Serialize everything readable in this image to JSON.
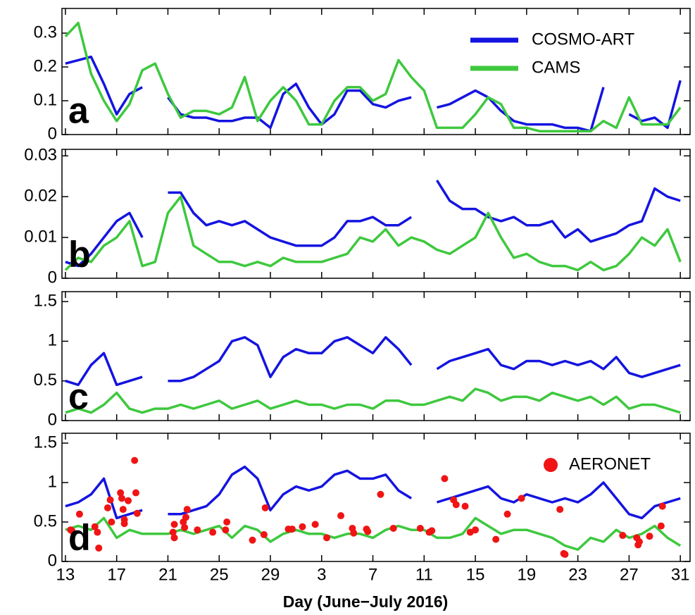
{
  "chart_data": [
    {
      "type": "line",
      "label": "a",
      "legend": "upper right",
      "x": [
        0,
        1,
        2,
        3,
        4,
        5,
        6,
        7,
        8,
        9,
        10,
        11,
        12,
        13,
        14,
        15,
        16,
        17,
        18,
        19,
        20,
        21,
        22,
        23,
        24,
        25,
        26,
        27,
        28,
        29,
        30,
        31,
        32,
        33,
        34,
        35,
        36,
        37,
        38,
        39,
        40,
        41,
        42,
        43,
        44,
        45,
        46,
        47,
        48
      ],
      "xlim": [
        -0.27,
        48.76
      ],
      "ylim": [
        0,
        0.373
      ],
      "yticks": [
        0,
        0.1,
        0.2,
        0.3
      ],
      "series": [
        {
          "name": "COSMO-ART",
          "color": "#1414e0",
          "values": [
            0.21,
            0.22,
            0.23,
            0.15,
            0.06,
            0.12,
            0.14,
            null,
            0.11,
            0.06,
            0.05,
            0.05,
            0.04,
            0.04,
            0.05,
            0.05,
            0.02,
            0.12,
            0.15,
            0.08,
            0.03,
            0.06,
            0.13,
            0.13,
            0.09,
            0.08,
            0.1,
            0.11,
            null,
            0.08,
            0.09,
            0.11,
            0.13,
            0.11,
            0.07,
            0.04,
            0.03,
            0.03,
            0.03,
            0.02,
            0.02,
            0.01,
            0.14,
            null,
            0.06,
            0.04,
            0.05,
            0.02,
            0.16
          ]
        },
        {
          "name": "CAMS",
          "color": "#3ec83e",
          "values": [
            0.29,
            0.33,
            0.18,
            0.1,
            0.04,
            0.09,
            0.19,
            0.21,
            0.12,
            0.05,
            0.07,
            0.07,
            0.06,
            0.08,
            0.17,
            0.04,
            0.1,
            0.14,
            0.1,
            0.03,
            0.03,
            0.1,
            0.14,
            0.14,
            0.1,
            0.12,
            0.22,
            0.17,
            0.13,
            0.02,
            0.02,
            0.02,
            0.06,
            0.11,
            0.09,
            0.02,
            0.02,
            0.01,
            0.01,
            0.01,
            0.01,
            0.01,
            0.04,
            0.02,
            0.11,
            0.03,
            0.03,
            0.03,
            0.08
          ]
        }
      ]
    },
    {
      "type": "line",
      "label": "b",
      "x": [
        0,
        1,
        2,
        3,
        4,
        5,
        6,
        7,
        8,
        9,
        10,
        11,
        12,
        13,
        14,
        15,
        16,
        17,
        18,
        19,
        20,
        21,
        22,
        23,
        24,
        25,
        26,
        27,
        28,
        29,
        30,
        31,
        32,
        33,
        34,
        35,
        36,
        37,
        38,
        39,
        40,
        41,
        42,
        43,
        44,
        45,
        46,
        47,
        48
      ],
      "xlim": [
        -0.27,
        48.76
      ],
      "ylim": [
        0,
        0.0316
      ],
      "yticks": [
        0,
        0.01,
        0.02,
        0.03
      ],
      "series": [
        {
          "color": "#1414e0",
          "values": [
            0.004,
            0.003,
            0.006,
            0.01,
            0.014,
            0.016,
            0.01,
            null,
            0.021,
            0.021,
            0.016,
            0.013,
            0.014,
            0.013,
            0.014,
            0.012,
            0.01,
            0.009,
            0.008,
            0.008,
            0.008,
            0.01,
            0.014,
            0.014,
            0.015,
            0.013,
            0.013,
            0.015,
            null,
            0.024,
            0.019,
            0.017,
            0.017,
            0.015,
            0.014,
            0.015,
            0.013,
            0.013,
            0.014,
            0.01,
            0.012,
            0.009,
            0.01,
            0.011,
            0.013,
            0.014,
            0.022,
            0.02,
            0.019
          ]
        },
        {
          "color": "#3ec83e",
          "values": [
            0.002,
            0.005,
            0.004,
            0.008,
            0.01,
            0.014,
            0.003,
            0.004,
            0.016,
            0.02,
            0.008,
            0.006,
            0.004,
            0.004,
            0.003,
            0.004,
            0.003,
            0.005,
            0.004,
            0.004,
            0.004,
            0.005,
            0.006,
            0.01,
            0.009,
            0.012,
            0.008,
            0.01,
            0.009,
            0.007,
            0.006,
            0.008,
            0.01,
            0.016,
            0.01,
            0.005,
            0.006,
            0.004,
            0.003,
            0.003,
            0.002,
            0.004,
            0.002,
            0.003,
            0.006,
            0.01,
            0.008,
            0.012,
            0.004
          ]
        }
      ]
    },
    {
      "type": "line",
      "label": "c",
      "x": [
        0,
        1,
        2,
        3,
        4,
        5,
        6,
        7,
        8,
        9,
        10,
        11,
        12,
        13,
        14,
        15,
        16,
        17,
        18,
        19,
        20,
        21,
        22,
        23,
        24,
        25,
        26,
        27,
        28,
        29,
        30,
        31,
        32,
        33,
        34,
        35,
        36,
        37,
        38,
        39,
        40,
        41,
        42,
        43,
        44,
        45,
        46,
        47,
        48
      ],
      "xlim": [
        -0.27,
        48.76
      ],
      "ylim": [
        0,
        1.625
      ],
      "yticks": [
        0,
        0.5,
        1,
        1.5
      ],
      "series": [
        {
          "color": "#1414e0",
          "values": [
            0.5,
            0.45,
            0.7,
            0.85,
            0.45,
            0.5,
            0.55,
            null,
            0.5,
            0.5,
            0.55,
            0.65,
            0.75,
            1.0,
            1.05,
            0.95,
            0.55,
            0.8,
            0.9,
            0.85,
            0.85,
            1.0,
            1.05,
            0.95,
            0.85,
            1.05,
            0.9,
            0.7,
            null,
            0.65,
            0.75,
            0.8,
            0.85,
            0.9,
            0.7,
            0.65,
            0.75,
            0.75,
            0.7,
            0.75,
            0.7,
            0.75,
            0.65,
            0.8,
            0.6,
            0.55,
            0.6,
            0.65,
            0.7
          ]
        },
        {
          "color": "#3ec83e",
          "values": [
            0.1,
            0.15,
            0.1,
            0.2,
            0.35,
            0.15,
            0.1,
            0.15,
            0.15,
            0.2,
            0.15,
            0.2,
            0.25,
            0.15,
            0.2,
            0.25,
            0.15,
            0.2,
            0.25,
            0.2,
            0.2,
            0.15,
            0.2,
            0.2,
            0.15,
            0.25,
            0.25,
            0.2,
            0.2,
            0.25,
            0.3,
            0.25,
            0.4,
            0.35,
            0.25,
            0.3,
            0.3,
            0.25,
            0.35,
            0.3,
            0.25,
            0.3,
            0.2,
            0.3,
            0.15,
            0.2,
            0.2,
            0.15,
            0.1
          ]
        }
      ]
    },
    {
      "type": "line",
      "label": "d",
      "legend": "upper right",
      "xlabel": "Day (June−July 2016)",
      "x": [
        0,
        1,
        2,
        3,
        4,
        5,
        6,
        7,
        8,
        9,
        10,
        11,
        12,
        13,
        14,
        15,
        16,
        17,
        18,
        19,
        20,
        21,
        22,
        23,
        24,
        25,
        26,
        27,
        28,
        29,
        30,
        31,
        32,
        33,
        34,
        35,
        36,
        37,
        38,
        39,
        40,
        41,
        42,
        43,
        44,
        45,
        46,
        47,
        48
      ],
      "xlim": [
        -0.27,
        48.76
      ],
      "ylim": [
        0,
        1.625
      ],
      "yticks": [
        0,
        0.5,
        1,
        1.5
      ],
      "xticks": [
        {
          "value": 0,
          "label": "13"
        },
        {
          "value": 4,
          "label": "17"
        },
        {
          "value": 8,
          "label": "21"
        },
        {
          "value": 12,
          "label": "25"
        },
        {
          "value": 16,
          "label": "29"
        },
        {
          "value": 20,
          "label": "3"
        },
        {
          "value": 24,
          "label": "7"
        },
        {
          "value": 28,
          "label": "11"
        },
        {
          "value": 32,
          "label": "15"
        },
        {
          "value": 36,
          "label": "19"
        },
        {
          "value": 40,
          "label": "23"
        },
        {
          "value": 44,
          "label": "27"
        },
        {
          "value": 48,
          "label": "31"
        }
      ],
      "series": [
        {
          "color": "#1414e0",
          "values": [
            0.7,
            0.75,
            0.85,
            1.05,
            0.55,
            0.6,
            0.65,
            null,
            0.6,
            0.6,
            0.65,
            0.7,
            0.85,
            1.1,
            1.2,
            1.05,
            0.65,
            0.85,
            0.95,
            0.9,
            0.95,
            1.1,
            1.15,
            1.05,
            1.05,
            1.1,
            0.9,
            0.8,
            null,
            0.75,
            0.8,
            0.85,
            0.9,
            0.95,
            0.8,
            0.75,
            0.85,
            0.8,
            0.75,
            0.8,
            0.75,
            0.85,
            1.0,
            0.8,
            0.6,
            0.55,
            0.7,
            0.75,
            0.8
          ]
        },
        {
          "color": "#3ec83e",
          "values": [
            0.4,
            0.45,
            0.4,
            0.55,
            0.3,
            0.4,
            0.35,
            0.35,
            0.35,
            0.4,
            0.35,
            0.4,
            0.45,
            0.3,
            0.45,
            0.4,
            0.25,
            0.35,
            0.4,
            0.35,
            0.35,
            0.3,
            0.35,
            0.35,
            0.3,
            0.4,
            0.45,
            0.4,
            0.4,
            0.3,
            0.3,
            0.35,
            0.55,
            0.45,
            0.35,
            0.4,
            0.4,
            0.35,
            0.3,
            0.2,
            0.15,
            0.3,
            0.25,
            0.4,
            0.3,
            0.35,
            0.45,
            0.3,
            0.2
          ]
        },
        {
          "name": "AERONET",
          "type": "scatter",
          "color": "#f01414",
          "x": [
            0.4,
            0.5,
            1.1,
            2.3,
            2.5,
            2.6,
            3.3,
            3.5,
            3.6,
            4.3,
            4.4,
            4.5,
            4.6,
            4.6,
            4.9,
            5.4,
            5.5,
            5.6,
            8.4,
            8.5,
            8.5,
            9.2,
            9.3,
            9.5,
            9.4,
            10.3,
            11.5,
            12.5,
            12.6,
            14.6,
            15.5,
            15.6,
            17.4,
            17.7,
            18.5,
            19.5,
            20.4,
            21.5,
            22.4,
            22.5,
            23.5,
            23.6,
            24.6,
            25.6,
            27.7,
            28.4,
            28.6,
            29.6,
            30.3,
            30.5,
            31.2,
            31.6,
            32.0,
            33.6,
            34.5,
            35.6,
            38.6,
            38.9,
            39.0,
            43.5,
            44.6,
            44.8,
            44.7,
            45.6,
            46.5,
            46.6
          ],
          "values": [
            0.4,
            0.39,
            0.6,
            0.44,
            0.37,
            0.17,
            0.68,
            0.78,
            0.5,
            0.87,
            0.8,
            0.66,
            0.53,
            0.48,
            0.77,
            1.28,
            0.87,
            0.61,
            0.37,
            0.3,
            0.47,
            0.5,
            0.43,
            0.66,
            0.56,
            0.4,
            0.37,
            0.4,
            0.5,
            0.27,
            0.34,
            0.68,
            0.41,
            0.41,
            0.44,
            0.47,
            0.3,
            0.58,
            0.42,
            0.36,
            0.41,
            0.38,
            0.85,
            0.42,
            0.42,
            0.37,
            0.39,
            1.05,
            0.78,
            0.72,
            0.7,
            0.37,
            0.4,
            0.28,
            0.6,
            0.8,
            0.66,
            0.1,
            0.09,
            0.33,
            0.3,
            0.25,
            0.21,
            0.32,
            0.45,
            0.7
          ]
        }
      ]
    }
  ]
}
